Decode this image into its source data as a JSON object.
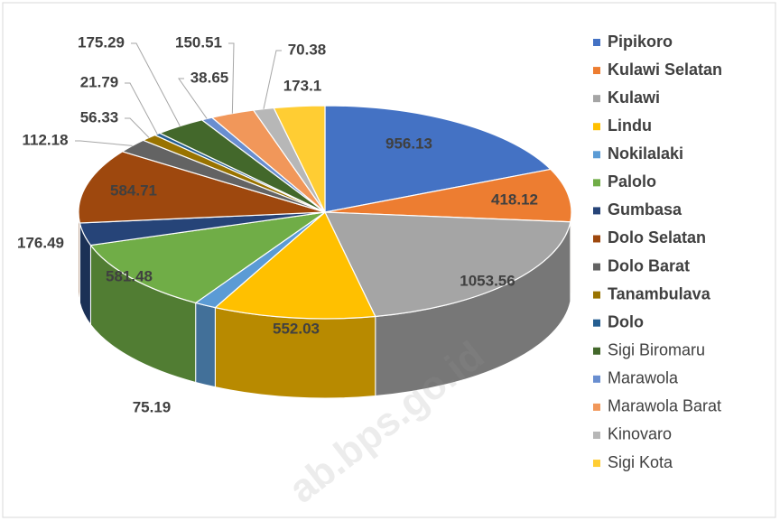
{
  "chart_data": {
    "type": "pie3d",
    "categories": [
      "Pipikoro",
      "Kulawi Selatan",
      "Kulawi",
      "Lindu",
      "Nokilalaki",
      "Palolo",
      "Gumbasa",
      "Dolo Selatan",
      "Dolo Barat",
      "Tanambulava",
      "Dolo",
      "Sigi Biromaru",
      "Marawola",
      "Marawola Barat",
      "Kinovaro",
      "Sigi Kota"
    ],
    "values": [
      956.13,
      418.12,
      1053.56,
      552.03,
      75.19,
      581.48,
      176.49,
      584.71,
      112.18,
      56.33,
      21.79,
      175.29,
      38.65,
      150.51,
      70.38,
      173.1
    ],
    "colors": [
      "#4472c4",
      "#ed7d31",
      "#a5a5a5",
      "#ffc000",
      "#5b9bd5",
      "#70ad47",
      "#264478",
      "#9e480e",
      "#636363",
      "#997300",
      "#255e91",
      "#43682b",
      "#698ed0",
      "#f1975a",
      "#b7b7b7",
      "#ffcd33"
    ],
    "legend": "right",
    "watermark": "ab.bps.go.id"
  }
}
